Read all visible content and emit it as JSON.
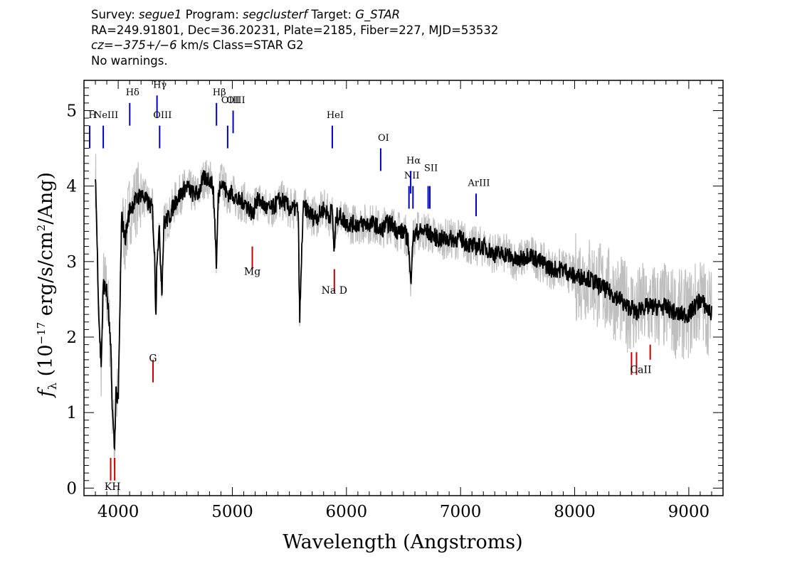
{
  "header": {
    "line1": {
      "survey_label": "Survey: ",
      "survey": "segue1",
      "program_label": " Program: ",
      "program": "segclusterf",
      "target_label": " Target: ",
      "target": "G_STAR"
    },
    "line2": "RA=249.91801, Dec=36.20231, Plate=2185, Fiber=227, MJD=53532",
    "line3": {
      "cz_label": "cz",
      "cz_value": "=−375+/−6",
      "cz_unit": " km/s Class=STAR G2"
    },
    "line4": "No warnings."
  },
  "chart_data": {
    "type": "line",
    "xlabel": "Wavelength (Angstroms)",
    "ylabel": "f_λ (10^-17 erg/s/cm^2/Ang)",
    "xlim": [
      3700,
      9300
    ],
    "ylim": [
      -0.1,
      5.4
    ],
    "x_ticks": [
      4000,
      5000,
      6000,
      7000,
      8000,
      9000
    ],
    "y_ticks": [
      0,
      1,
      2,
      3,
      4,
      5
    ],
    "grid": false,
    "series": [
      {
        "role": "flux",
        "color": "#000000",
        "x": [
          3800,
          3830,
          3850,
          3870,
          3900,
          3920,
          3935,
          3950,
          3968,
          3980,
          4000,
          4030,
          4060,
          4101,
          4150,
          4200,
          4250,
          4300,
          4320,
          4330,
          4340,
          4360,
          4383,
          4400,
          4450,
          4500,
          4550,
          4600,
          4650,
          4700,
          4750,
          4800,
          4830,
          4845,
          4861,
          4875,
          4900,
          4950,
          5000,
          5050,
          5100,
          5150,
          5183,
          5200,
          5250,
          5300,
          5350,
          5400,
          5450,
          5500,
          5550,
          5577,
          5590,
          5620,
          5650,
          5700,
          5750,
          5800,
          5850,
          5875,
          5893,
          5910,
          5950,
          6000,
          6050,
          6100,
          6150,
          6200,
          6250,
          6300,
          6350,
          6400,
          6450,
          6500,
          6540,
          6563,
          6580,
          6620,
          6700,
          6800,
          6900,
          7000,
          7100,
          7200,
          7300,
          7400,
          7500,
          7600,
          7700,
          7800,
          7900,
          8000,
          8100,
          8200,
          8300,
          8400,
          8450,
          8498,
          8542,
          8580,
          8662,
          8700,
          8800,
          8900,
          9000,
          9100,
          9200
        ],
        "y": [
          4.2,
          2.3,
          1.6,
          2.7,
          2.6,
          2.2,
          1.8,
          1.0,
          0.5,
          1.3,
          1.1,
          3.6,
          3.3,
          3.7,
          3.8,
          3.9,
          3.8,
          3.7,
          3.0,
          2.3,
          3.1,
          3.4,
          2.6,
          3.5,
          3.6,
          3.8,
          3.9,
          4.0,
          3.9,
          3.9,
          4.1,
          4.1,
          4.0,
          3.6,
          2.9,
          3.8,
          4.1,
          3.9,
          3.9,
          3.8,
          3.8,
          3.7,
          3.6,
          3.8,
          3.8,
          3.7,
          3.7,
          3.8,
          3.8,
          3.7,
          3.7,
          3.7,
          2.2,
          3.7,
          3.7,
          3.6,
          3.6,
          3.7,
          3.6,
          3.7,
          3.1,
          3.6,
          3.6,
          3.5,
          3.5,
          3.5,
          3.5,
          3.5,
          3.5,
          3.4,
          3.5,
          3.5,
          3.4,
          3.4,
          3.3,
          2.7,
          3.3,
          3.4,
          3.4,
          3.3,
          3.3,
          3.3,
          3.2,
          3.2,
          3.1,
          3.1,
          3.0,
          3.1,
          3.0,
          2.9,
          2.9,
          2.8,
          2.8,
          2.7,
          2.6,
          2.5,
          2.4,
          2.4,
          2.3,
          2.4,
          2.4,
          2.4,
          2.4,
          2.3,
          2.3,
          2.5,
          2.3
        ]
      },
      {
        "role": "flux-error-band",
        "color": "#bfbfbf",
        "spread": 0.25
      }
    ],
    "line_markers": [
      {
        "label": "H",
        "wavelength": 3750,
        "type": "emission"
      },
      {
        "label": "NeIII",
        "wavelength": 3869,
        "type": "emission"
      },
      {
        "label": "Hδ",
        "wavelength": 4101,
        "type": "emission"
      },
      {
        "label": "Hγ",
        "wavelength": 4340,
        "type": "emission"
      },
      {
        "label": "OIII",
        "wavelength": 4363,
        "type": "emission"
      },
      {
        "label": "Hβ",
        "wavelength": 4861,
        "type": "emission"
      },
      {
        "label": "OIII",
        "wavelength": 4959,
        "type": "emission"
      },
      {
        "label": "OIII",
        "wavelength": 5007,
        "type": "emission"
      },
      {
        "label": "HeI",
        "wavelength": 5876,
        "type": "emission"
      },
      {
        "label": "OI",
        "wavelength": 6300,
        "type": "emission"
      },
      {
        "label": "NII",
        "wavelength": 6548,
        "type": "emission"
      },
      {
        "label": "Hα",
        "wavelength": 6563,
        "type": "emission"
      },
      {
        "label": "NII",
        "wavelength": 6583,
        "type": "emission"
      },
      {
        "label": "SII",
        "wavelength": 6716,
        "type": "emission"
      },
      {
        "label": "SII",
        "wavelength": 6731,
        "type": "emission"
      },
      {
        "label": "ArIII",
        "wavelength": 7136,
        "type": "emission"
      },
      {
        "label": "K",
        "wavelength": 3934,
        "type": "absorption"
      },
      {
        "label": "H",
        "wavelength": 3969,
        "type": "absorption"
      },
      {
        "label": "G",
        "wavelength": 4305,
        "type": "absorption"
      },
      {
        "label": "Mg",
        "wavelength": 5175,
        "type": "absorption"
      },
      {
        "label": "Na D",
        "wavelength": 5894,
        "type": "absorption"
      },
      {
        "label": "CaII",
        "wavelength": 8498,
        "type": "absorption"
      },
      {
        "label": "CaII",
        "wavelength": 8542,
        "type": "absorption"
      },
      {
        "label": "CaII",
        "wavelength": 8662,
        "type": "absorption"
      }
    ],
    "marker_colors": {
      "emission": "#0000cc",
      "absorption": "#cc0000"
    }
  }
}
